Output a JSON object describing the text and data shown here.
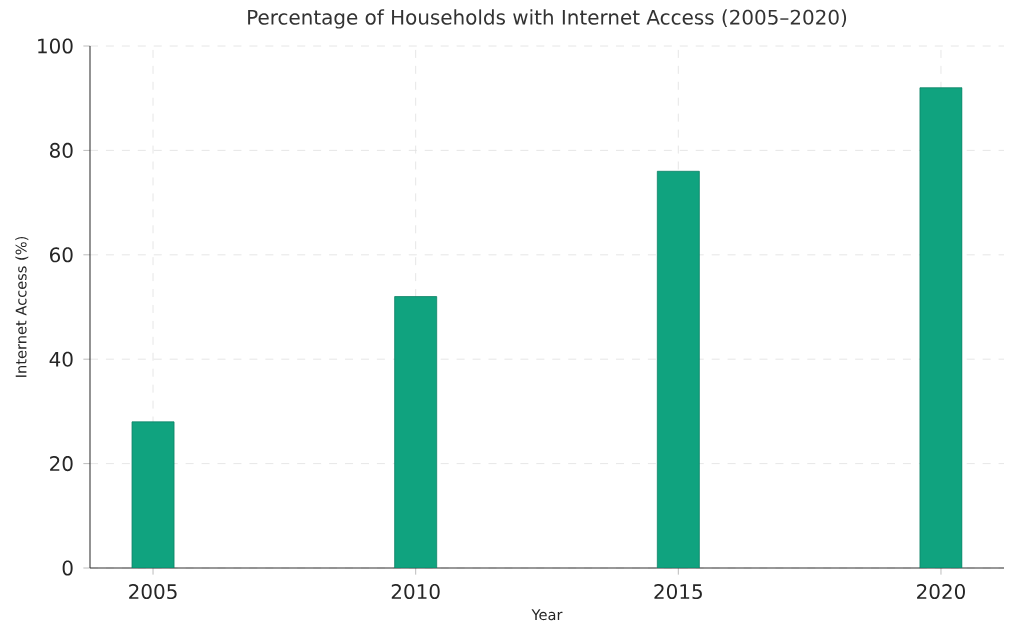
{
  "chart_data": {
    "type": "bar",
    "title": "Percentage of Households with Internet Access (2005–2020)",
    "xlabel": "Year",
    "ylabel": "Internet Access (%)",
    "x": [
      2005,
      2010,
      2015,
      2020
    ],
    "values": [
      28,
      52,
      76,
      92
    ],
    "color": "#10a37f",
    "xlim": [
      2003.8,
      2021.2
    ],
    "ylim": [
      0,
      100
    ],
    "xticks": [
      2005,
      2010,
      2015,
      2020
    ],
    "yticks": [
      0,
      20,
      40,
      60,
      80,
      100
    ],
    "grid": true
  }
}
